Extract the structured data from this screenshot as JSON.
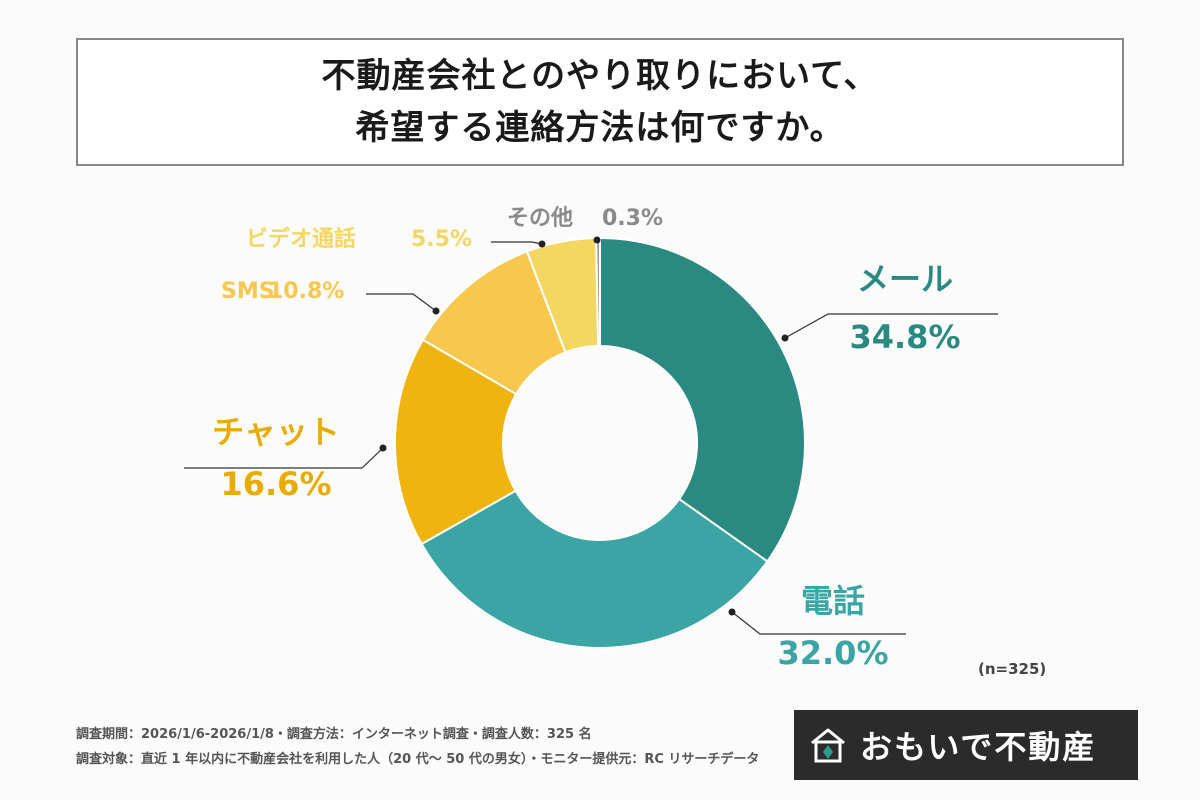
{
  "title": {
    "line1": "不動産会社とのやり取りにおいて、",
    "line2": "希望する連絡方法は何ですか。"
  },
  "chart_data": {
    "type": "pie",
    "donut": true,
    "slices": [
      {
        "name": "メール",
        "value": 34.8,
        "label": "34.8%",
        "color": "#2a8a82"
      },
      {
        "name": "電話",
        "value": 32.0,
        "label": "32.0%",
        "color": "#3aa5a4"
      },
      {
        "name": "チャット",
        "value": 16.6,
        "label": "16.6%",
        "color": "#efb40f"
      },
      {
        "name": "SMS",
        "value": 10.8,
        "label": "10.8%",
        "color": "#f8c74d"
      },
      {
        "name": "ビデオ通話",
        "value": 5.5,
        "label": "5.5%",
        "color": "#f4d762"
      },
      {
        "name": "その他",
        "value": 0.3,
        "label": "0.3%",
        "color": "#999999"
      }
    ],
    "label_colors": {
      "メール": "#2a8a82",
      "電話": "#3aa5a4",
      "チャット": "#e8ac00",
      "SMS": "#f8c74d",
      "ビデオ通話": "#f4d762",
      "その他": "#8a8a8a"
    },
    "sample_size": "(n=325)"
  },
  "footer": {
    "line1": "調査期間：2026/1/6-2026/1/8・調査方法：インターネット調査・調査人数：325 名",
    "line2": "調査対象：直近 1 年以内に不動産会社を利用した人（20 代〜 50 代の男女）・モニター提供元：RC リサーチデータ"
  },
  "logo": {
    "text": "おもいで不動産",
    "icon": "house-icon"
  }
}
